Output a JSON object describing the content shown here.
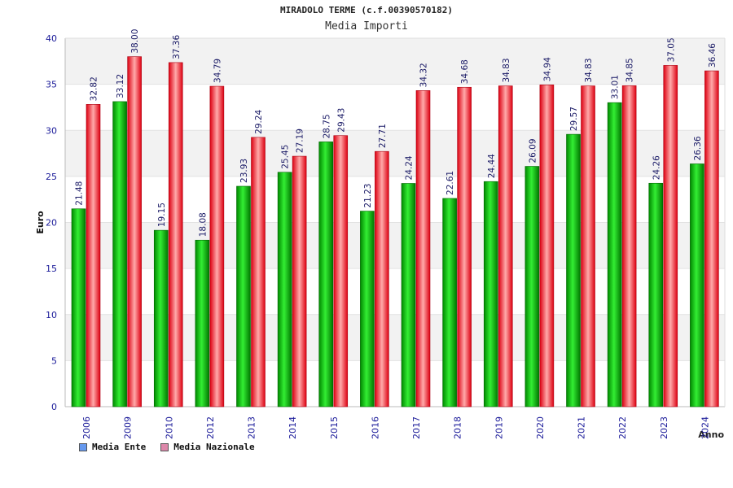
{
  "chart_data": {
    "type": "bar",
    "title": "MIRADOLO TERME (c.f.00390570182)",
    "subtitle": "Media Importi",
    "xlabel": "Anno",
    "ylabel": "Euro",
    "ylim": [
      0,
      40
    ],
    "yticks": [
      0,
      5,
      10,
      15,
      20,
      25,
      30,
      35,
      40
    ],
    "grid": true,
    "legend_placement": "bottom-left",
    "categories": [
      "2006",
      "2009",
      "2010",
      "2012",
      "2013",
      "2014",
      "2015",
      "2016",
      "2017",
      "2018",
      "2019",
      "2020",
      "2021",
      "2022",
      "2023",
      "2024"
    ],
    "series": [
      {
        "name": "Media Ente",
        "color": "#00aa00",
        "legend_color": "#6699ee",
        "values": [
          21.48,
          33.12,
          19.15,
          18.08,
          23.93,
          25.45,
          28.75,
          21.23,
          24.24,
          22.61,
          24.44,
          26.09,
          29.57,
          33.01,
          24.26,
          26.36
        ]
      },
      {
        "name": "Media Nazionale",
        "color": "#ee1122",
        "legend_color": "#dd88aa",
        "values": [
          32.82,
          38.0,
          37.36,
          34.79,
          29.24,
          27.19,
          29.43,
          27.71,
          34.32,
          34.68,
          34.83,
          34.94,
          34.83,
          34.85,
          37.05,
          36.46
        ]
      }
    ],
    "value_labels": [
      [
        "21.48",
        "33.12",
        "19.15",
        "18.08",
        "23.93",
        "25.45",
        "28.75",
        "21.23",
        "24.24",
        "22.61",
        "24.44",
        "26.09",
        "29.57",
        "33.01",
        "24.26",
        "26.36"
      ],
      [
        "32.82",
        "38.00",
        "37.36",
        "34.79",
        "29.24",
        "27.19",
        "29.43",
        "27.71",
        "34.32",
        "34.68",
        "34.83",
        "34.94",
        "34.83",
        "34.85",
        "37.05",
        "36.46"
      ]
    ]
  }
}
